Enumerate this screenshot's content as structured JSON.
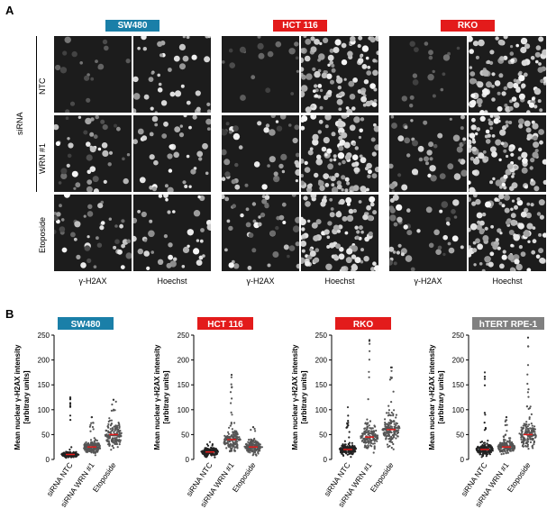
{
  "panel_a": {
    "letter": "A",
    "cell_lines": [
      {
        "name": "SW480",
        "color": "#1a7fa8"
      },
      {
        "name": "HCT 116",
        "color": "#e31b1b"
      },
      {
        "name": "RKO",
        "color": "#e31b1b"
      }
    ],
    "channels": [
      "γ-H2AX",
      "Hoechst"
    ],
    "sirna_label": "siRNA",
    "rows": [
      "NTC",
      "WRN #1",
      "Etoposide"
    ]
  },
  "panel_b": {
    "letter": "B",
    "chart_data": [
      {
        "type": "scatter",
        "title": "SW480",
        "title_color": "#1a7fa8",
        "ylabel": "Mean nuclear γ-H2AX intensity\n[arbitrary units]",
        "ylim": [
          0,
          250
        ],
        "yticks": [
          0,
          50,
          100,
          150,
          200,
          250
        ],
        "categories": [
          "siRNA NTC",
          "siRNA WRN #1",
          "Etoposide"
        ],
        "medians": [
          10,
          25,
          50
        ],
        "max": [
          125,
          85,
          120
        ]
      },
      {
        "type": "scatter",
        "title": "HCT 116",
        "title_color": "#e31b1b",
        "ylabel": "Mean nuclear γ-H2AX intensity\n[arbitrary units]",
        "ylim": [
          0,
          250
        ],
        "yticks": [
          0,
          50,
          100,
          150,
          200,
          250
        ],
        "categories": [
          "siRNA NTC",
          "siRNA WRN #1",
          "Etoposide"
        ],
        "medians": [
          15,
          40,
          25
        ],
        "max": [
          35,
          170,
          65
        ]
      },
      {
        "type": "scatter",
        "title": "RKO",
        "title_color": "#e31b1b",
        "ylabel": "Mean nuclear γ-H2AX intensity\n[arbitrary units]",
        "ylim": [
          0,
          250
        ],
        "yticks": [
          0,
          50,
          100,
          150,
          200,
          250
        ],
        "categories": [
          "siRNA NTC",
          "siRNA WRN #1",
          "Etoposide"
        ],
        "medians": [
          20,
          45,
          60
        ],
        "max": [
          105,
          240,
          185
        ]
      },
      {
        "type": "scatter",
        "title": "hTERT RPE-1",
        "title_color": "#808080",
        "ylabel": "Mean nuclear γ-H2AX intensity\n[arbitrary units]",
        "ylim": [
          0,
          250
        ],
        "yticks": [
          0,
          50,
          100,
          150,
          200,
          250
        ],
        "categories": [
          "siRNA NTC",
          "siRNA WRN #1",
          "Etoposide"
        ],
        "medians": [
          20,
          25,
          50
        ],
        "max": [
          175,
          85,
          245
        ]
      }
    ]
  }
}
